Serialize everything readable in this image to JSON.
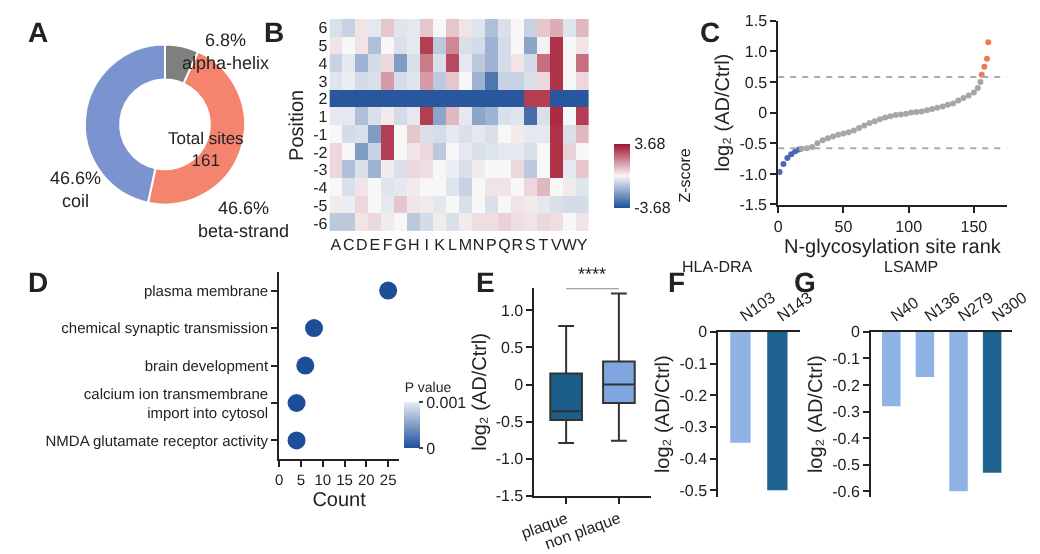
{
  "chart_data": [
    {
      "type": "donut",
      "categories": [
        "alpha-helix",
        "beta-strand",
        "coil"
      ],
      "values": [
        6.8,
        46.6,
        46.6
      ],
      "value_labels": [
        "6.8%",
        "46.6%",
        "46.6%"
      ],
      "colors": [
        "#7f7f7f",
        "#f4846e",
        "#7b93cf"
      ],
      "annotations": [
        "A",
        "Total sites\n161"
      ]
    },
    {
      "type": "heatmap",
      "ylabel": "Position",
      "clabel": "Z-score",
      "clim": [
        -3.68,
        3.68
      ],
      "cticks": [
        -3.68,
        3.68
      ],
      "annotations": [
        "B"
      ],
      "categories": [
        "A",
        "C",
        "D",
        "E",
        "F",
        "G",
        "H",
        "I",
        "K",
        "L",
        "M",
        "N",
        "P",
        "Q",
        "R",
        "S",
        "T",
        "V",
        "W",
        "Y"
      ],
      "y_categories": [
        "6",
        "5",
        "4",
        "3",
        "2",
        "1",
        "-1",
        "-2",
        "-3",
        "-4",
        "-5",
        "-6"
      ],
      "cells": [
        [
          -0.5,
          -0.8,
          0.3,
          -0.3,
          0.8,
          -0.4,
          -0.3,
          0.8,
          0,
          0.8,
          0.3,
          -0.4,
          -1.2,
          -0.5,
          0,
          -0.8,
          0.8,
          1.2,
          -0.4,
          1.0
        ],
        [
          0.3,
          0,
          0.3,
          -1.2,
          0,
          -0.5,
          -0.3,
          3.0,
          -1.0,
          1.8,
          -0.5,
          -0.6,
          -1.5,
          -0.6,
          0,
          -1.8,
          0.1,
          3.2,
          0,
          0.3
        ],
        [
          -0.8,
          -0.3,
          -1.5,
          -0.6,
          0.5,
          -2.0,
          -0.5,
          2.0,
          -0.5,
          2.8,
          -0.3,
          -1.0,
          -1.5,
          -0.6,
          0.3,
          -0.6,
          2.2,
          3.2,
          0,
          2.2
        ],
        [
          -0.4,
          -0.2,
          -0.6,
          -0.5,
          1.5,
          -0.6,
          -0.4,
          1.5,
          -1.0,
          0.8,
          0,
          -1.5,
          -2.8,
          -0.8,
          -0.8,
          -0.5,
          0.5,
          3.2,
          0,
          0.5
        ],
        [
          -3.5,
          -3.5,
          -3.5,
          -3.5,
          -3.5,
          -3.5,
          -3.5,
          -3.5,
          -3.5,
          -3.5,
          -3.5,
          -3.5,
          -3.5,
          -3.5,
          -3.5,
          3.0,
          3.0,
          -3.5,
          -3.5,
          -3.5
        ],
        [
          -0.3,
          -0.3,
          -1.2,
          -0.5,
          0.2,
          -0.6,
          -0.3,
          3.0,
          -1.8,
          1.0,
          -0.3,
          -1.8,
          -1.5,
          -0.5,
          -0.4,
          -3.0,
          -0.5,
          3.3,
          0,
          3.0
        ],
        [
          0,
          -0.6,
          -0.5,
          -2.0,
          3.0,
          0,
          0.8,
          -0.5,
          -0.6,
          -0.3,
          -0.5,
          -0.3,
          -0.5,
          0,
          0.2,
          -0.3,
          -0.3,
          3.2,
          -0.5,
          1.0
        ],
        [
          0.5,
          0,
          -2.0,
          -0.8,
          3.0,
          0,
          0.3,
          0.5,
          -1.0,
          0,
          -0.3,
          -0.5,
          -0.4,
          -0.3,
          -0.3,
          -0.5,
          0,
          3.2,
          0.6,
          0
        ],
        [
          0.5,
          -1.2,
          -0.5,
          -1.5,
          0.2,
          -0.5,
          0.5,
          0.4,
          0,
          -0.2,
          -0.5,
          0.2,
          0,
          0,
          0.5,
          -1.0,
          0,
          3.2,
          -0.3,
          0.8
        ],
        [
          0,
          -0.5,
          0.3,
          0,
          -0.4,
          -0.3,
          0.2,
          0,
          0,
          -0.4,
          -0.8,
          0,
          0.3,
          0.3,
          0,
          0.5,
          1.0,
          0,
          0.2,
          -0.4
        ],
        [
          0.2,
          -0.2,
          0.5,
          0,
          -0.3,
          0.8,
          0.3,
          0.2,
          -0.3,
          0,
          -0.5,
          0,
          -0.5,
          0,
          0.3,
          0.2,
          -0.3,
          -0.5,
          -0.6,
          -0.6
        ],
        [
          -1.0,
          -1.0,
          0.3,
          0.5,
          0.2,
          0,
          -1.0,
          -0.6,
          0.2,
          -0.5,
          0.2,
          0.4,
          0.4,
          0.6,
          0.4,
          0.3,
          0.5,
          0.4,
          0,
          0.3
        ]
      ]
    },
    {
      "type": "scatter",
      "xlabel": "N-glycosylation site rank",
      "ylabel": "log₂ (AD/Ctrl)",
      "marker": "circle",
      "annotations": [
        "C"
      ],
      "xlim": [
        0,
        175
      ],
      "xticks": [
        0,
        50,
        100,
        150
      ],
      "ylim": [
        -1.5,
        1.5
      ],
      "yticks": [
        {
          "value": -1.5,
          "label": "-1.5"
        },
        {
          "value": -1,
          "label": "-1.0"
        },
        {
          "value": -0.5,
          "label": "-0.5"
        },
        0,
        0.5,
        {
          "value": 1,
          "label": "1.0"
        },
        1.5
      ],
      "ref_lines": [
        {
          "axis": "y",
          "value": 0.58,
          "color": "#aaaaaa",
          "line_style": "dotted"
        },
        {
          "axis": "y",
          "value": -0.58,
          "color": "#aaaaaa",
          "line_style": "dotted"
        }
      ],
      "series": [
        {
          "color": "#4a68b0",
          "x": [
            1,
            4,
            7,
            10,
            13,
            16
          ],
          "values": [
            -0.97,
            -0.84,
            -0.74,
            -0.68,
            -0.63,
            -0.6
          ]
        },
        {
          "color": "#a6a6a6",
          "x": [
            18,
            22,
            26,
            30,
            34,
            38,
            42,
            46,
            50,
            54,
            58,
            62,
            66,
            70,
            74,
            78,
            82,
            86,
            90,
            94,
            98,
            102,
            106,
            110,
            114,
            118,
            122,
            126,
            130,
            134,
            138,
            142,
            146,
            150,
            153,
            155
          ],
          "values": [
            -0.59,
            -0.58,
            -0.56,
            -0.5,
            -0.45,
            -0.42,
            -0.39,
            -0.36,
            -0.34,
            -0.32,
            -0.29,
            -0.25,
            -0.21,
            -0.17,
            -0.14,
            -0.11,
            -0.08,
            -0.06,
            -0.04,
            -0.03,
            -0.02,
            0,
            0.01,
            0.02,
            0.04,
            0.06,
            0.08,
            0.1,
            0.13,
            0.15,
            0.2,
            0.24,
            0.28,
            0.33,
            0.4,
            0.5
          ]
        },
        {
          "color": "#f07a58",
          "x": [
            156,
            158,
            160,
            161
          ],
          "values": [
            0.62,
            0.75,
            0.88,
            1.15
          ]
        }
      ]
    },
    {
      "type": "scatter",
      "orientation": "horizontal",
      "xlabel": "Count",
      "clabel": "P value",
      "marker": "circle",
      "annotations": [
        "D"
      ],
      "categories": [
        "plasma membrane",
        "chemical synaptic transmission",
        "brain development",
        "calcium ion transmembrane\nimport into cytosol",
        "NMDA glutamate receptor activity"
      ],
      "values": [
        25,
        8,
        6,
        4,
        4
      ],
      "cvalues": [
        0,
        0,
        0,
        0,
        0
      ],
      "clim": [
        0,
        0.001
      ],
      "cticks": [
        0,
        0.001
      ],
      "xlim": [
        0,
        27.5
      ],
      "xticks": [
        0,
        5,
        10,
        15,
        20,
        25
      ]
    },
    {
      "type": "box",
      "ylabel": "log₂ (AD/Ctrl)",
      "annotations": [
        "E",
        "****"
      ],
      "categories": [
        "plaque",
        "non plaque"
      ],
      "colors": [
        "#1b5e8a",
        "#7fa6de"
      ],
      "boxes": [
        {
          "low": -0.79,
          "q1": -0.48,
          "median": -0.36,
          "q3": 0.15,
          "high": 0.79
        },
        {
          "low": -0.76,
          "q1": -0.25,
          "median": 0,
          "q3": 0.31,
          "high": 1.23
        }
      ],
      "ylim": [
        -1.5,
        1.3
      ],
      "yticks": [
        {
          "value": -1.5,
          "label": "-1.5"
        },
        {
          "value": -1,
          "label": "-1.0"
        },
        {
          "value": -0.5,
          "label": "-0.5"
        },
        0,
        0.5,
        {
          "value": 1,
          "label": "1.0"
        }
      ]
    },
    {
      "type": "bar",
      "title": "HLA-DRA",
      "ylabel": "log₂ (AD/Ctrl)",
      "annotations": [
        "F"
      ],
      "categories": [
        "N103",
        "N143"
      ],
      "values": [
        -0.35,
        -0.5
      ],
      "colors": [
        "#8fb3e5",
        "#1f6391"
      ],
      "ylim": [
        -0.52,
        0
      ],
      "yticks": [
        0,
        -0.1,
        -0.2,
        -0.3,
        -0.4,
        -0.5
      ]
    },
    {
      "type": "bar",
      "title": "LSAMP",
      "ylabel": "log₂ (AD/Ctrl)",
      "annotations": [
        "G"
      ],
      "categories": [
        "N40",
        "N136",
        "N279",
        "N300"
      ],
      "values": [
        -0.28,
        -0.17,
        -0.6,
        -0.53
      ],
      "colors": [
        "#8fb3e5",
        "#8fb3e5",
        "#8fb3e5",
        "#1f6391"
      ],
      "ylim": [
        -0.62,
        0
      ],
      "yticks": [
        0,
        -0.1,
        -0.2,
        -0.3,
        -0.4,
        -0.5,
        -0.6
      ]
    }
  ]
}
